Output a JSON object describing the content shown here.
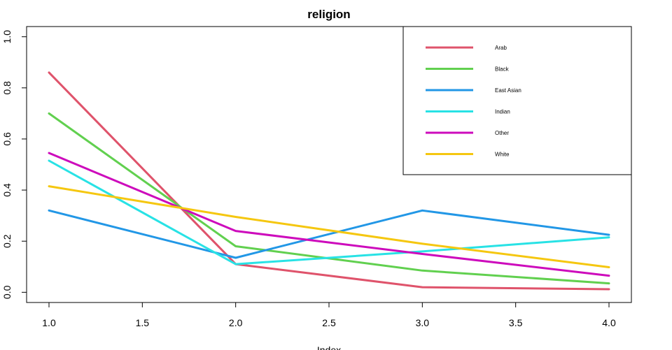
{
  "chart_data": {
    "type": "line",
    "title": "religion",
    "xlabel": "Index",
    "ylabel": "",
    "x": [
      1.0,
      2.0,
      3.0,
      4.0
    ],
    "xlim": [
      0.88,
      4.12
    ],
    "ylim": [
      -0.04,
      1.04
    ],
    "xticks": [
      "1.0",
      "1.5",
      "2.0",
      "2.5",
      "3.0",
      "3.5",
      "4.0"
    ],
    "yticks": [
      "0.0",
      "0.2",
      "0.4",
      "0.6",
      "0.8",
      "1.0"
    ],
    "grid": false,
    "legend_position": "top-right",
    "series": [
      {
        "name": "Arab",
        "color": "#DF536B",
        "values": [
          0.86,
          0.11,
          0.02,
          0.012
        ]
      },
      {
        "name": "Black",
        "color": "#61D04F",
        "values": [
          0.7,
          0.18,
          0.085,
          0.035
        ]
      },
      {
        "name": "East Asian",
        "color": "#2297E6",
        "values": [
          0.32,
          0.135,
          0.32,
          0.225
        ]
      },
      {
        "name": "Indian",
        "color": "#28E2E5",
        "values": [
          0.515,
          0.11,
          0.16,
          0.215
        ]
      },
      {
        "name": "Other",
        "color": "#CD0BBC",
        "values": [
          0.545,
          0.24,
          0.15,
          0.065
        ]
      },
      {
        "name": "White",
        "color": "#F5C710",
        "values": [
          0.415,
          0.295,
          0.19,
          0.098
        ]
      }
    ]
  }
}
